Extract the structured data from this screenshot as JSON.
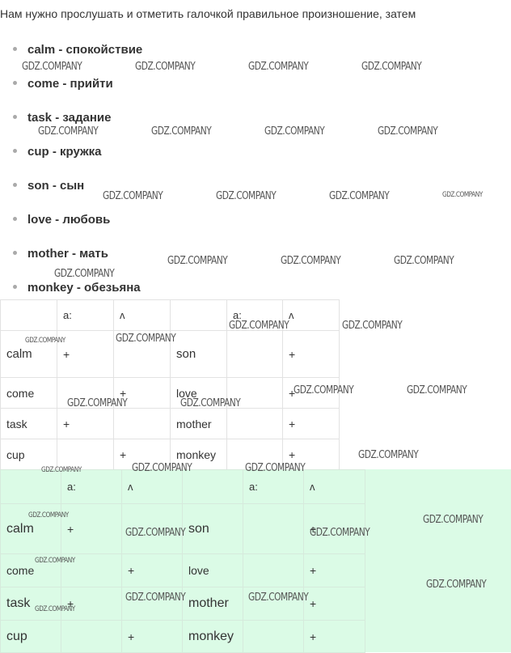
{
  "intro_text": "Нам нужно прослушать и отметить галочкой правильное произношение, затем",
  "vocabulary": [
    {
      "label": "calm - спокойствие"
    },
    {
      "label": "come - прийти"
    },
    {
      "label": "task - задание"
    },
    {
      "label": "cup - кружка"
    },
    {
      "label": "son - сын"
    },
    {
      "label": "love - любовь"
    },
    {
      "label": "mother - мать"
    },
    {
      "label": "monkey - обезьяна"
    }
  ],
  "table": {
    "header": [
      "",
      "a:",
      "ʌ",
      "",
      "a:",
      "ʌ"
    ],
    "rows": [
      [
        "calm",
        "+",
        "",
        "son",
        "",
        "+"
      ],
      [
        "come",
        "",
        "+",
        "love",
        "",
        "+"
      ],
      [
        "task",
        "+",
        "",
        "mother",
        "",
        "+"
      ],
      [
        "cup",
        "",
        "+",
        "monkey",
        "",
        "+"
      ]
    ]
  },
  "answer_table": {
    "header": [
      "",
      "a:",
      "ʌ",
      "",
      "a:",
      "ʌ"
    ],
    "rows": [
      [
        "calm",
        "+",
        "",
        "son",
        "",
        "+"
      ],
      [
        "come",
        "",
        "+",
        "love",
        "",
        "+"
      ],
      [
        "task",
        "+",
        "",
        "mother",
        "",
        "+"
      ],
      [
        "cup",
        "",
        "+",
        "monkey",
        "",
        "+"
      ]
    ]
  },
  "watermark": "GDZ.COMPANY",
  "colors": {
    "answer_background": "#dbfbe6",
    "text": "#333333"
  }
}
